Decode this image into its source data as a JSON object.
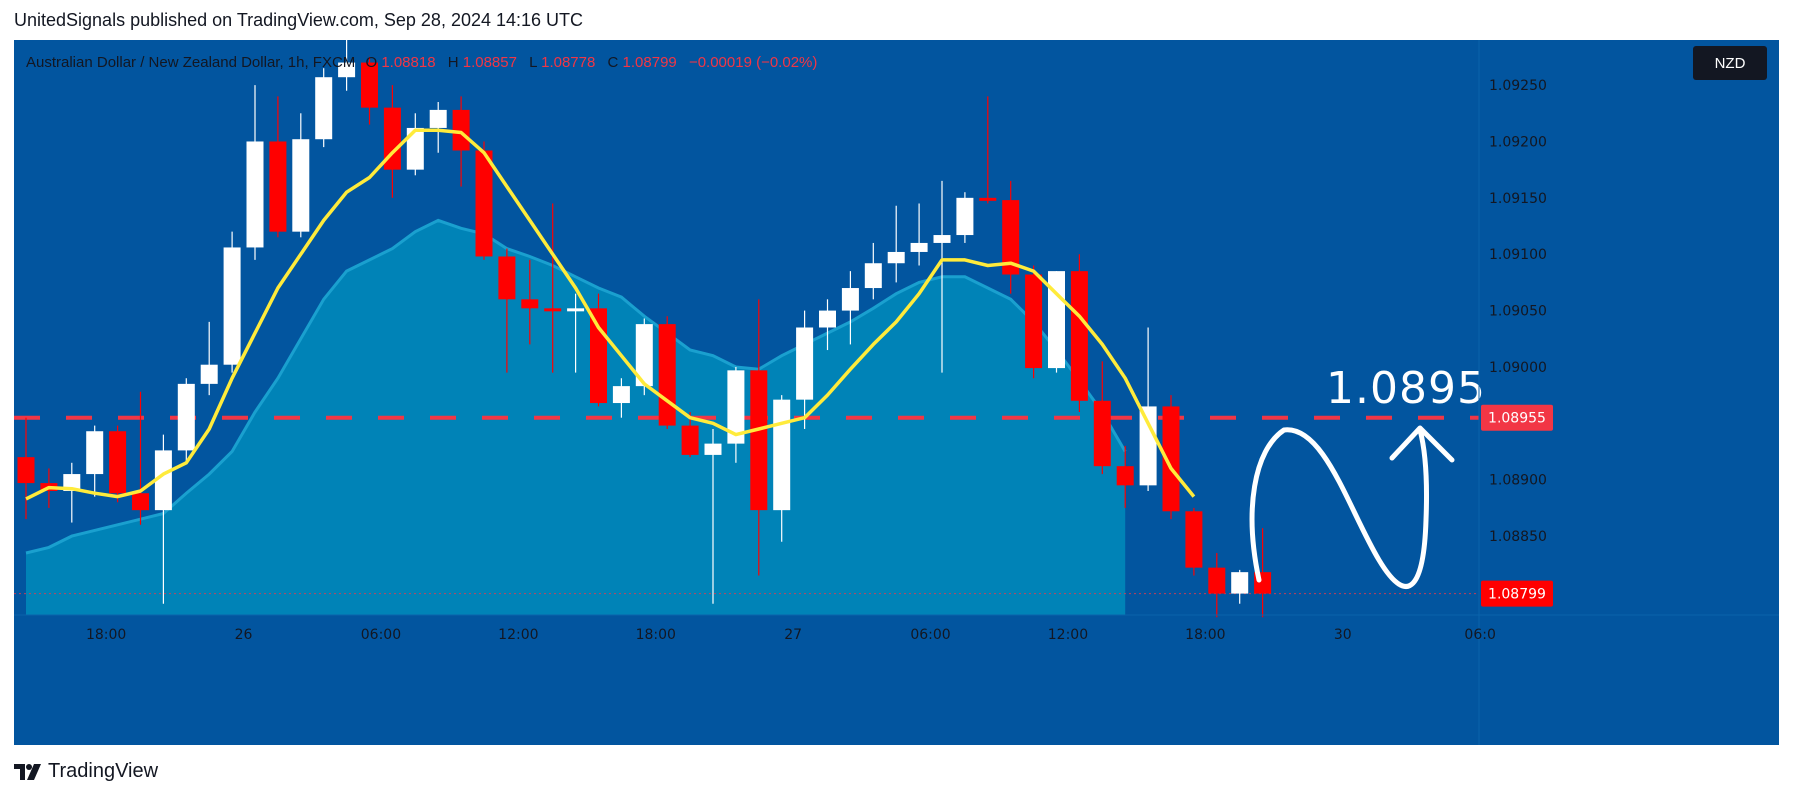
{
  "publisher": "UnitedSignals published on TradingView.com, Sep 28, 2024 14:16 UTC",
  "symbol": {
    "name": "Australian Dollar / New Zealand Dollar, 1h, FXCM",
    "open_label": "O",
    "open": "1.08818",
    "high_label": "H",
    "high": "1.08857",
    "low_label": "L",
    "low": "1.08778",
    "close_label": "C",
    "close": "1.08799",
    "change": "−0.00019 (−0.02%)"
  },
  "currency": "NZD",
  "footer": {
    "brand": "TradingView"
  },
  "colors": {
    "background": "#02559f",
    "bull_candle": "#ffffff",
    "bear_candle": "#ff0000",
    "ma": "#ffeb3b",
    "ribbon": "#0088b8",
    "level_line": "#f23645",
    "annotation": "#ffffff"
  },
  "chart_data": {
    "type": "candlestick",
    "title": "Australian Dollar / New Zealand Dollar, 1h, FXCM",
    "y_axis": {
      "range": [
        1.0878,
        1.0929
      ],
      "ticks": [
        1.0925,
        1.092,
        1.0915,
        1.091,
        1.0905,
        1.09,
        1.089,
        1.0885
      ],
      "tick_labels": [
        "1.09250",
        "1.09200",
        "1.09150",
        "1.09100",
        "1.09050",
        "1.09000",
        "1.08900",
        "1.08850"
      ]
    },
    "x_axis": {
      "range": [
        0,
        63
      ],
      "ticks": [
        {
          "x": 3.5,
          "label": "18:00"
        },
        {
          "x": 9.5,
          "label": "26"
        },
        {
          "x": 15.5,
          "label": "06:00"
        },
        {
          "x": 21.5,
          "label": "12:00"
        },
        {
          "x": 27.5,
          "label": "18:00"
        },
        {
          "x": 33.5,
          "label": "27"
        },
        {
          "x": 39.5,
          "label": "06:00"
        },
        {
          "x": 45.5,
          "label": "12:00"
        },
        {
          "x": 51.5,
          "label": "18:00"
        },
        {
          "x": 57.5,
          "label": "30"
        },
        {
          "x": 63.5,
          "label": "06:0"
        }
      ]
    },
    "candles": [
      {
        "o": 1.0892,
        "h": 1.08955,
        "l": 1.08865,
        "c": 1.08897
      },
      {
        "o": 1.08897,
        "h": 1.0891,
        "l": 1.08875,
        "c": 1.0889
      },
      {
        "o": 1.0889,
        "h": 1.08915,
        "l": 1.08862,
        "c": 1.08905
      },
      {
        "o": 1.08905,
        "h": 1.08948,
        "l": 1.08885,
        "c": 1.08943
      },
      {
        "o": 1.08943,
        "h": 1.08948,
        "l": 1.0888,
        "c": 1.08888
      },
      {
        "o": 1.08888,
        "h": 1.08978,
        "l": 1.0886,
        "c": 1.08873
      },
      {
        "o": 1.08873,
        "h": 1.0894,
        "l": 1.0879,
        "c": 1.08926
      },
      {
        "o": 1.08926,
        "h": 1.0899,
        "l": 1.08915,
        "c": 1.08985
      },
      {
        "o": 1.08985,
        "h": 1.0904,
        "l": 1.08975,
        "c": 1.09002
      },
      {
        "o": 1.09002,
        "h": 1.0912,
        "l": 1.08995,
        "c": 1.09106
      },
      {
        "o": 1.09106,
        "h": 1.0925,
        "l": 1.09095,
        "c": 1.092
      },
      {
        "o": 1.092,
        "h": 1.0924,
        "l": 1.09115,
        "c": 1.0912
      },
      {
        "o": 1.0912,
        "h": 1.09225,
        "l": 1.09115,
        "c": 1.09202
      },
      {
        "o": 1.09202,
        "h": 1.09265,
        "l": 1.09195,
        "c": 1.09257
      },
      {
        "o": 1.09257,
        "h": 1.093,
        "l": 1.09245,
        "c": 1.0927
      },
      {
        "o": 1.0927,
        "h": 1.09275,
        "l": 1.09215,
        "c": 1.0923
      },
      {
        "o": 1.0923,
        "h": 1.0925,
        "l": 1.0915,
        "c": 1.09175
      },
      {
        "o": 1.09175,
        "h": 1.09225,
        "l": 1.0917,
        "c": 1.09212
      },
      {
        "o": 1.09212,
        "h": 1.09235,
        "l": 1.0919,
        "c": 1.09228
      },
      {
        "o": 1.09228,
        "h": 1.0924,
        "l": 1.0916,
        "c": 1.09192
      },
      {
        "o": 1.09192,
        "h": 1.092,
        "l": 1.09095,
        "c": 1.09098
      },
      {
        "o": 1.09098,
        "h": 1.09105,
        "l": 1.08995,
        "c": 1.0906
      },
      {
        "o": 1.0906,
        "h": 1.09095,
        "l": 1.0902,
        "c": 1.09052
      },
      {
        "o": 1.09052,
        "h": 1.09145,
        "l": 1.08995,
        "c": 1.0905
      },
      {
        "o": 1.0905,
        "h": 1.09065,
        "l": 1.08995,
        "c": 1.09052
      },
      {
        "o": 1.09052,
        "h": 1.09065,
        "l": 1.08965,
        "c": 1.08968
      },
      {
        "o": 1.08968,
        "h": 1.0899,
        "l": 1.08955,
        "c": 1.08983
      },
      {
        "o": 1.08983,
        "h": 1.09043,
        "l": 1.08975,
        "c": 1.09038
      },
      {
        "o": 1.09038,
        "h": 1.09045,
        "l": 1.08945,
        "c": 1.08948
      },
      {
        "o": 1.08948,
        "h": 1.0896,
        "l": 1.0892,
        "c": 1.08922
      },
      {
        "o": 1.08922,
        "h": 1.08945,
        "l": 1.0879,
        "c": 1.08932
      },
      {
        "o": 1.08932,
        "h": 1.09,
        "l": 1.08915,
        "c": 1.08997
      },
      {
        "o": 1.08997,
        "h": 1.0906,
        "l": 1.08815,
        "c": 1.08873
      },
      {
        "o": 1.08873,
        "h": 1.08975,
        "l": 1.08845,
        "c": 1.08971
      },
      {
        "o": 1.08971,
        "h": 1.0905,
        "l": 1.08945,
        "c": 1.09035
      },
      {
        "o": 1.09035,
        "h": 1.0906,
        "l": 1.09015,
        "c": 1.0905
      },
      {
        "o": 1.0905,
        "h": 1.09085,
        "l": 1.0902,
        "c": 1.0907
      },
      {
        "o": 1.0907,
        "h": 1.0911,
        "l": 1.0906,
        "c": 1.09092
      },
      {
        "o": 1.09092,
        "h": 1.09143,
        "l": 1.09075,
        "c": 1.09102
      },
      {
        "o": 1.09102,
        "h": 1.09145,
        "l": 1.0909,
        "c": 1.0911
      },
      {
        "o": 1.0911,
        "h": 1.09165,
        "l": 1.08995,
        "c": 1.09117
      },
      {
        "o": 1.09117,
        "h": 1.09155,
        "l": 1.0911,
        "c": 1.0915
      },
      {
        "o": 1.0915,
        "h": 1.0924,
        "l": 1.09145,
        "c": 1.09148
      },
      {
        "o": 1.09148,
        "h": 1.09165,
        "l": 1.09065,
        "c": 1.09082
      },
      {
        "o": 1.09082,
        "h": 1.0909,
        "l": 1.0899,
        "c": 1.08999
      },
      {
        "o": 1.08999,
        "h": 1.09085,
        "l": 1.08995,
        "c": 1.09085
      },
      {
        "o": 1.09085,
        "h": 1.091,
        "l": 1.0896,
        "c": 1.0897
      },
      {
        "o": 1.0897,
        "h": 1.09005,
        "l": 1.08905,
        "c": 1.08912
      },
      {
        "o": 1.08912,
        "h": 1.0893,
        "l": 1.08875,
        "c": 1.08895
      },
      {
        "o": 1.08895,
        "h": 1.09035,
        "l": 1.0889,
        "c": 1.08965
      },
      {
        "o": 1.08965,
        "h": 1.08975,
        "l": 1.08865,
        "c": 1.08872
      },
      {
        "o": 1.08872,
        "h": 1.08875,
        "l": 1.08815,
        "c": 1.08822
      },
      {
        "o": 1.08822,
        "h": 1.08835,
        "l": 1.08778,
        "c": 1.08799
      },
      {
        "o": 1.08799,
        "h": 1.0882,
        "l": 1.0879,
        "c": 1.08818
      },
      {
        "o": 1.08818,
        "h": 1.08857,
        "l": 1.08778,
        "c": 1.08799
      }
    ],
    "series": [
      {
        "name": "Moving average",
        "values": [
          1.08883,
          1.08893,
          1.08892,
          1.08888,
          1.08885,
          1.0889,
          1.08905,
          1.08915,
          1.08945,
          1.0899,
          1.0903,
          1.0907,
          1.091,
          1.0913,
          1.09155,
          1.09168,
          1.0919,
          1.0921,
          1.0921,
          1.09208,
          1.0919,
          1.0916,
          1.0913,
          1.091,
          1.0907,
          1.09035,
          1.0901,
          1.08985,
          1.0897,
          1.08955,
          1.0895,
          1.0894,
          1.08945,
          1.0895,
          1.08955,
          1.08975,
          1.08998,
          1.0902,
          1.0904,
          1.09065,
          1.09095,
          1.09095,
          1.0909,
          1.09092,
          1.09085,
          1.09065,
          1.09045,
          1.0902,
          1.0899,
          1.0895,
          1.0891,
          1.08885
        ]
      },
      {
        "name": "Ribbon",
        "values": [
          1.08835,
          1.0884,
          1.0885,
          1.08855,
          1.0886,
          1.08865,
          1.0887,
          1.08888,
          1.08905,
          1.08925,
          1.0896,
          1.0899,
          1.09025,
          1.0906,
          1.09085,
          1.09095,
          1.09105,
          1.0912,
          1.0913,
          1.09123,
          1.09118,
          1.09105,
          1.09098,
          1.0909,
          1.0908,
          1.0907,
          1.09062,
          1.09045,
          1.0903,
          1.09015,
          1.0901,
          1.09,
          1.08998,
          1.0901,
          1.0902,
          1.0903,
          1.0904,
          1.09052,
          1.09065,
          1.09075,
          1.0908,
          1.0908,
          1.0907,
          1.0906,
          1.0904,
          1.09015,
          1.08988,
          1.0896,
          1.08925
        ]
      }
    ],
    "level": {
      "value": 1.08955,
      "label": "1.08955",
      "annotation": "1.0895"
    },
    "last_price": {
      "value": 1.08799,
      "label": "1.08799"
    }
  }
}
